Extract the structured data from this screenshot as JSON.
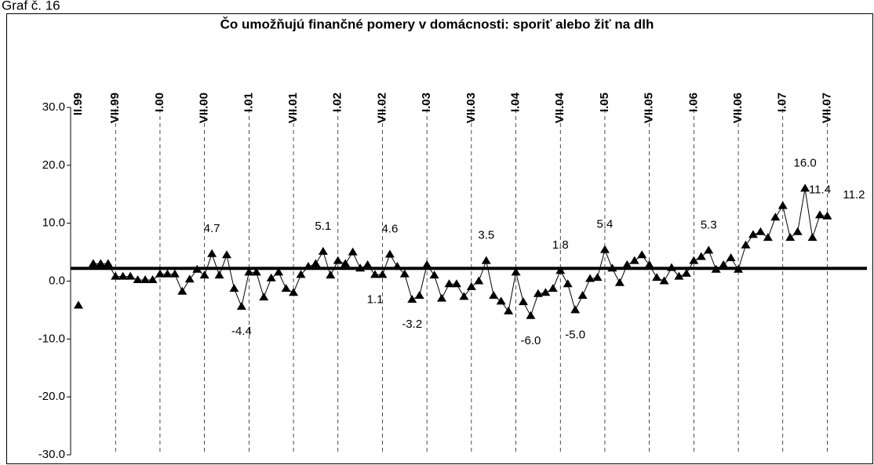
{
  "caption": "Graf č. 16",
  "chart_data": {
    "type": "line",
    "title": "Čo umožňujú finančné pomery v domácnosti: sporiť alebo žiť na dlh",
    "categories": [
      "II.99",
      null,
      null,
      null,
      null,
      "VII.99",
      null,
      null,
      null,
      null,
      null,
      "I.00",
      null,
      null,
      null,
      null,
      null,
      "VII.00",
      null,
      null,
      null,
      null,
      null,
      "I.01",
      null,
      null,
      null,
      null,
      null,
      "VII.01",
      null,
      null,
      null,
      null,
      null,
      "I.02",
      null,
      null,
      null,
      null,
      null,
      "VII.02",
      null,
      null,
      null,
      null,
      null,
      "I.03",
      null,
      null,
      null,
      null,
      null,
      "VII.03",
      null,
      null,
      null,
      null,
      null,
      "I.04",
      null,
      null,
      null,
      null,
      null,
      "VII.04",
      null,
      null,
      null,
      null,
      null,
      "I.05",
      null,
      null,
      null,
      null,
      null,
      "VII.05",
      null,
      null,
      null,
      null,
      null,
      "I.06",
      null,
      null,
      null,
      null,
      null,
      "VII.06",
      null,
      null,
      null,
      null,
      null,
      "I.07",
      null,
      null,
      null,
      null,
      null,
      "VII.07"
    ],
    "values": [
      -4.2,
      null,
      3.0,
      3.0,
      3.0,
      0.8,
      0.8,
      0.8,
      0.2,
      0.2,
      0.2,
      1.2,
      1.2,
      1.2,
      -1.8,
      0.3,
      2.0,
      1.0,
      4.7,
      1.0,
      4.5,
      -1.3,
      -4.4,
      1.5,
      1.5,
      -2.8,
      0.5,
      1.5,
      -1.3,
      -2.0,
      1.1,
      2.5,
      3.0,
      5.1,
      1.0,
      3.5,
      3.0,
      5.0,
      2.2,
      2.8,
      1.1,
      1.1,
      4.6,
      2.5,
      1.2,
      -3.2,
      -2.5,
      2.8,
      1.0,
      -3.0,
      -0.5,
      -0.5,
      -2.7,
      -1.0,
      0.0,
      3.5,
      -2.5,
      -3.5,
      -5.2,
      1.5,
      -3.6,
      -6.0,
      -2.2,
      -2.0,
      -1.3,
      1.8,
      -0.5,
      -5.0,
      -2.5,
      0.4,
      0.6,
      5.4,
      2.2,
      -0.3,
      2.8,
      3.5,
      4.5,
      2.8,
      0.6,
      0.0,
      2.3,
      0.8,
      1.3,
      3.5,
      4.2,
      5.3,
      2.0,
      2.8,
      4.0,
      2.0,
      6.2,
      8.0,
      8.5,
      7.5,
      11.0,
      13.0,
      7.5,
      8.5,
      16.0,
      7.5,
      11.4,
      11.2
    ],
    "value_labels": [
      null,
      null,
      null,
      null,
      null,
      null,
      null,
      null,
      null,
      null,
      null,
      null,
      null,
      null,
      null,
      null,
      null,
      null,
      "4.7",
      null,
      null,
      null,
      "-4.4",
      null,
      null,
      null,
      null,
      null,
      null,
      null,
      null,
      null,
      null,
      "5.1",
      null,
      null,
      null,
      null,
      null,
      null,
      "1.1",
      null,
      "4.6",
      null,
      null,
      "-3.2",
      null,
      null,
      null,
      null,
      null,
      null,
      null,
      null,
      null,
      "3.5",
      null,
      null,
      null,
      null,
      null,
      "-6.0",
      null,
      null,
      null,
      "1.8",
      null,
      "-5.0",
      null,
      null,
      null,
      "5.4",
      null,
      null,
      null,
      null,
      null,
      null,
      null,
      null,
      null,
      null,
      null,
      null,
      null,
      "5.3",
      null,
      null,
      null,
      null,
      null,
      null,
      null,
      null,
      null,
      null,
      null,
      null,
      "16.0",
      null,
      "11.4",
      "11.2"
    ],
    "color": "#000000",
    "reference_line": 2.2,
    "ylim": [
      -30,
      30
    ],
    "yticks": [
      {
        "value": 30,
        "label": "30.0"
      },
      {
        "value": 20,
        "label": "20.0"
      },
      {
        "value": 10,
        "label": "10.0"
      },
      {
        "value": 0,
        "label": "0.0"
      },
      {
        "value": -10,
        "label": "-10.0"
      },
      {
        "value": -20,
        "label": "-20.0"
      },
      {
        "value": -30,
        "label": "-30.0"
      }
    ],
    "grid": true
  }
}
